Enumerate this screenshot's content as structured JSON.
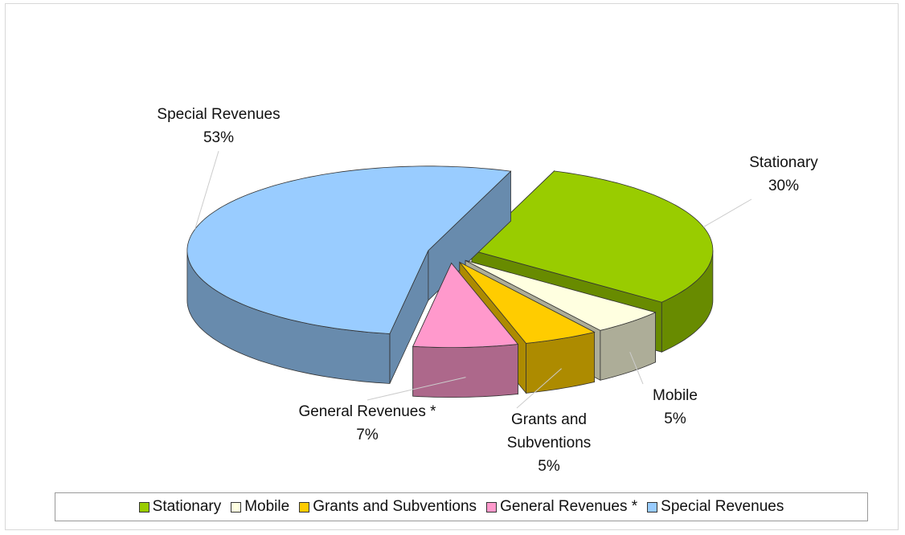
{
  "chart_data": {
    "type": "pie3d",
    "categories": [
      "Stationary",
      "Mobile",
      "Grants and Subventions",
      "General Revenues *",
      "Special Revenues"
    ],
    "values": [
      30,
      5,
      5,
      7,
      53
    ],
    "value_labels": [
      "30%",
      "5%",
      "5%",
      "7%",
      "53%"
    ],
    "colors": [
      "#99cc00",
      "#ffffe0",
      "#ffcc00",
      "#ff99cc",
      "#99ccff"
    ],
    "legend": "bottom"
  }
}
